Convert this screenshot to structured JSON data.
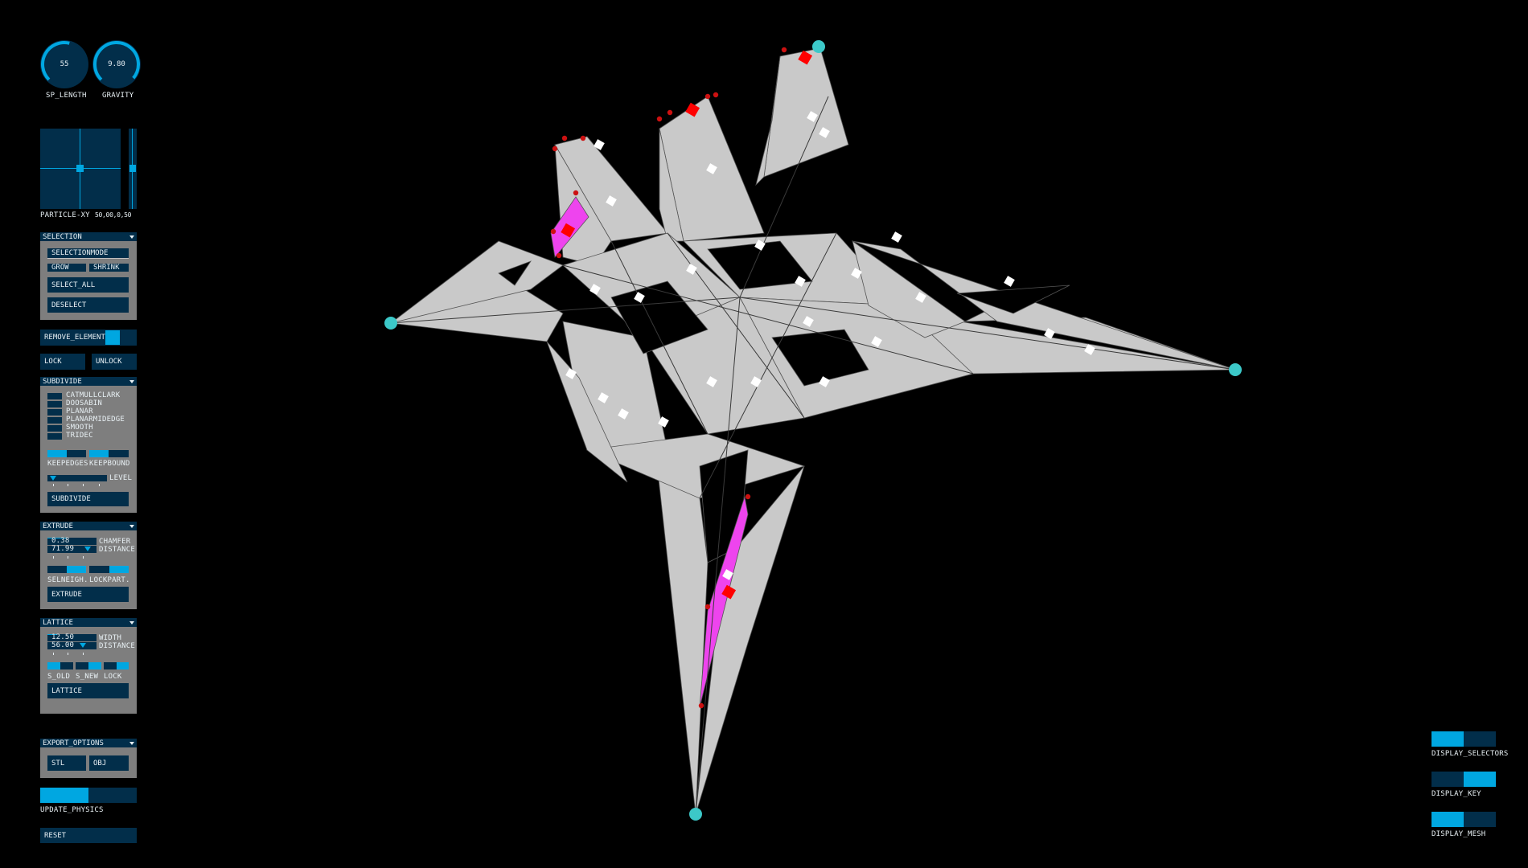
{
  "knobs": [
    {
      "label": "SP_LENGTH",
      "value": "55",
      "fraction": 0.55
    },
    {
      "label": "GRAVITY",
      "value": "9.80",
      "fraction": 0.98
    }
  ],
  "particle_xy": {
    "label": "PARTICLE-XY",
    "value": "50,00,0,50"
  },
  "selection": {
    "title": "SELECTION",
    "mode_label": "SELECTIONMODE",
    "grow": "GROW",
    "shrink": "SHRINK",
    "select_all": "SELECT_ALL",
    "deselect": "DESELECT"
  },
  "remove_element": "REMOVE_ELEMENT",
  "lock": "LOCK",
  "unlock": "UNLOCK",
  "subdivide": {
    "title": "SUBDIVIDE",
    "options": [
      "CATMULLCLARK",
      "DOOSABIN",
      "PLANAR",
      "PLANARMIDEDGE",
      "SMOOTH",
      "TRIDEC"
    ],
    "keepedges": "KEEPEDGES",
    "keepbound": "KEEPBOUND",
    "level": "LEVEL",
    "button": "SUBDIVIDE"
  },
  "extrude": {
    "title": "EXTRUDE",
    "chamfer_value": "0.38",
    "chamfer_label": "CHAMFER",
    "distance_value": "71.99",
    "distance_label": "DISTANCE",
    "selneigh": "SELNEIGH.",
    "lockpart": "LOCKPART.",
    "button": "EXTRUDE"
  },
  "lattice": {
    "title": "LATTICE",
    "width_value": "12.50",
    "width_label": "WIDTH",
    "distance_value": "56.00",
    "distance_label": "DISTANCE",
    "s_old": "S_OLD",
    "s_new": "S_NEW",
    "lock": "LOCK",
    "button": "LATTICE"
  },
  "export": {
    "title": "EXPORT_OPTIONS",
    "stl": "STL",
    "obj": "OBJ"
  },
  "update_physics": "UPDATE_PHYSICS",
  "reset": "RESET",
  "display": {
    "selectors": "DISPLAY_SELECTORS",
    "key": "DISPLAY_KEY",
    "mesh": "DISPLAY_MESH"
  },
  "colors": {
    "accent": "#00a7e1",
    "control_bg": "#022e4a",
    "panel_bg": "#7e7e7e",
    "mesh_face": "#c9c9c9",
    "selected_face": "#ee44ee",
    "anchor": "#3cc8c8",
    "selected_vertex": "#cc1111"
  }
}
